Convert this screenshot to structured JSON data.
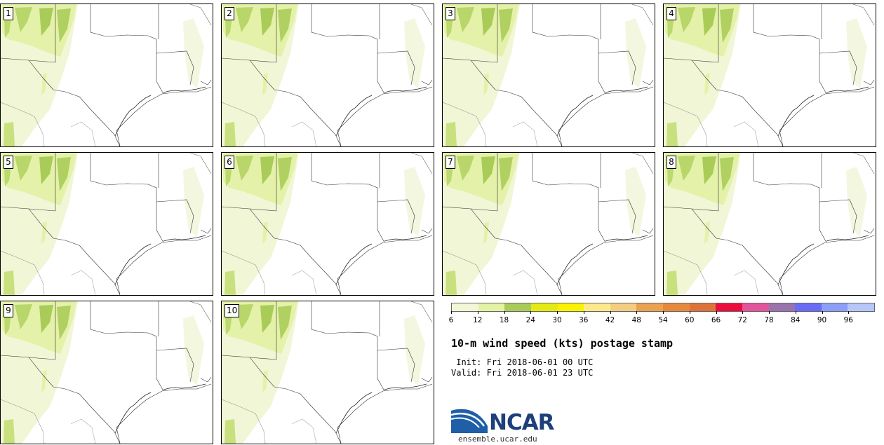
{
  "panels": [
    {
      "label": "1"
    },
    {
      "label": "2"
    },
    {
      "label": "3"
    },
    {
      "label": "4"
    },
    {
      "label": "5"
    },
    {
      "label": "6"
    },
    {
      "label": "7"
    },
    {
      "label": "8"
    },
    {
      "label": "9"
    },
    {
      "label": "10"
    }
  ],
  "colorbar": {
    "colors": [
      "#f3f7d8",
      "#e4f2a4",
      "#a9cc59",
      "#e6ea14",
      "#fbf200",
      "#fde98a",
      "#f5cd80",
      "#eba250",
      "#e7893c",
      "#dd7339",
      "#ee0c3c",
      "#e4549b",
      "#9a72ad",
      "#6a6cf7",
      "#8b9ff9",
      "#b6c6f8"
    ],
    "ticks": [
      "6",
      "12",
      "18",
      "24",
      "30",
      "36",
      "42",
      "48",
      "54",
      "60",
      "66",
      "72",
      "78",
      "84",
      "90",
      "96"
    ]
  },
  "title": "10-m wind speed (kts) postage stamp",
  "init_line": " Init: Fri 2018-06-01 00 UTC",
  "valid_line": "Valid: Fri 2018-06-01 23 UTC",
  "logo": {
    "text": "NCAR",
    "url": "ensemble.ucar.edu"
  }
}
